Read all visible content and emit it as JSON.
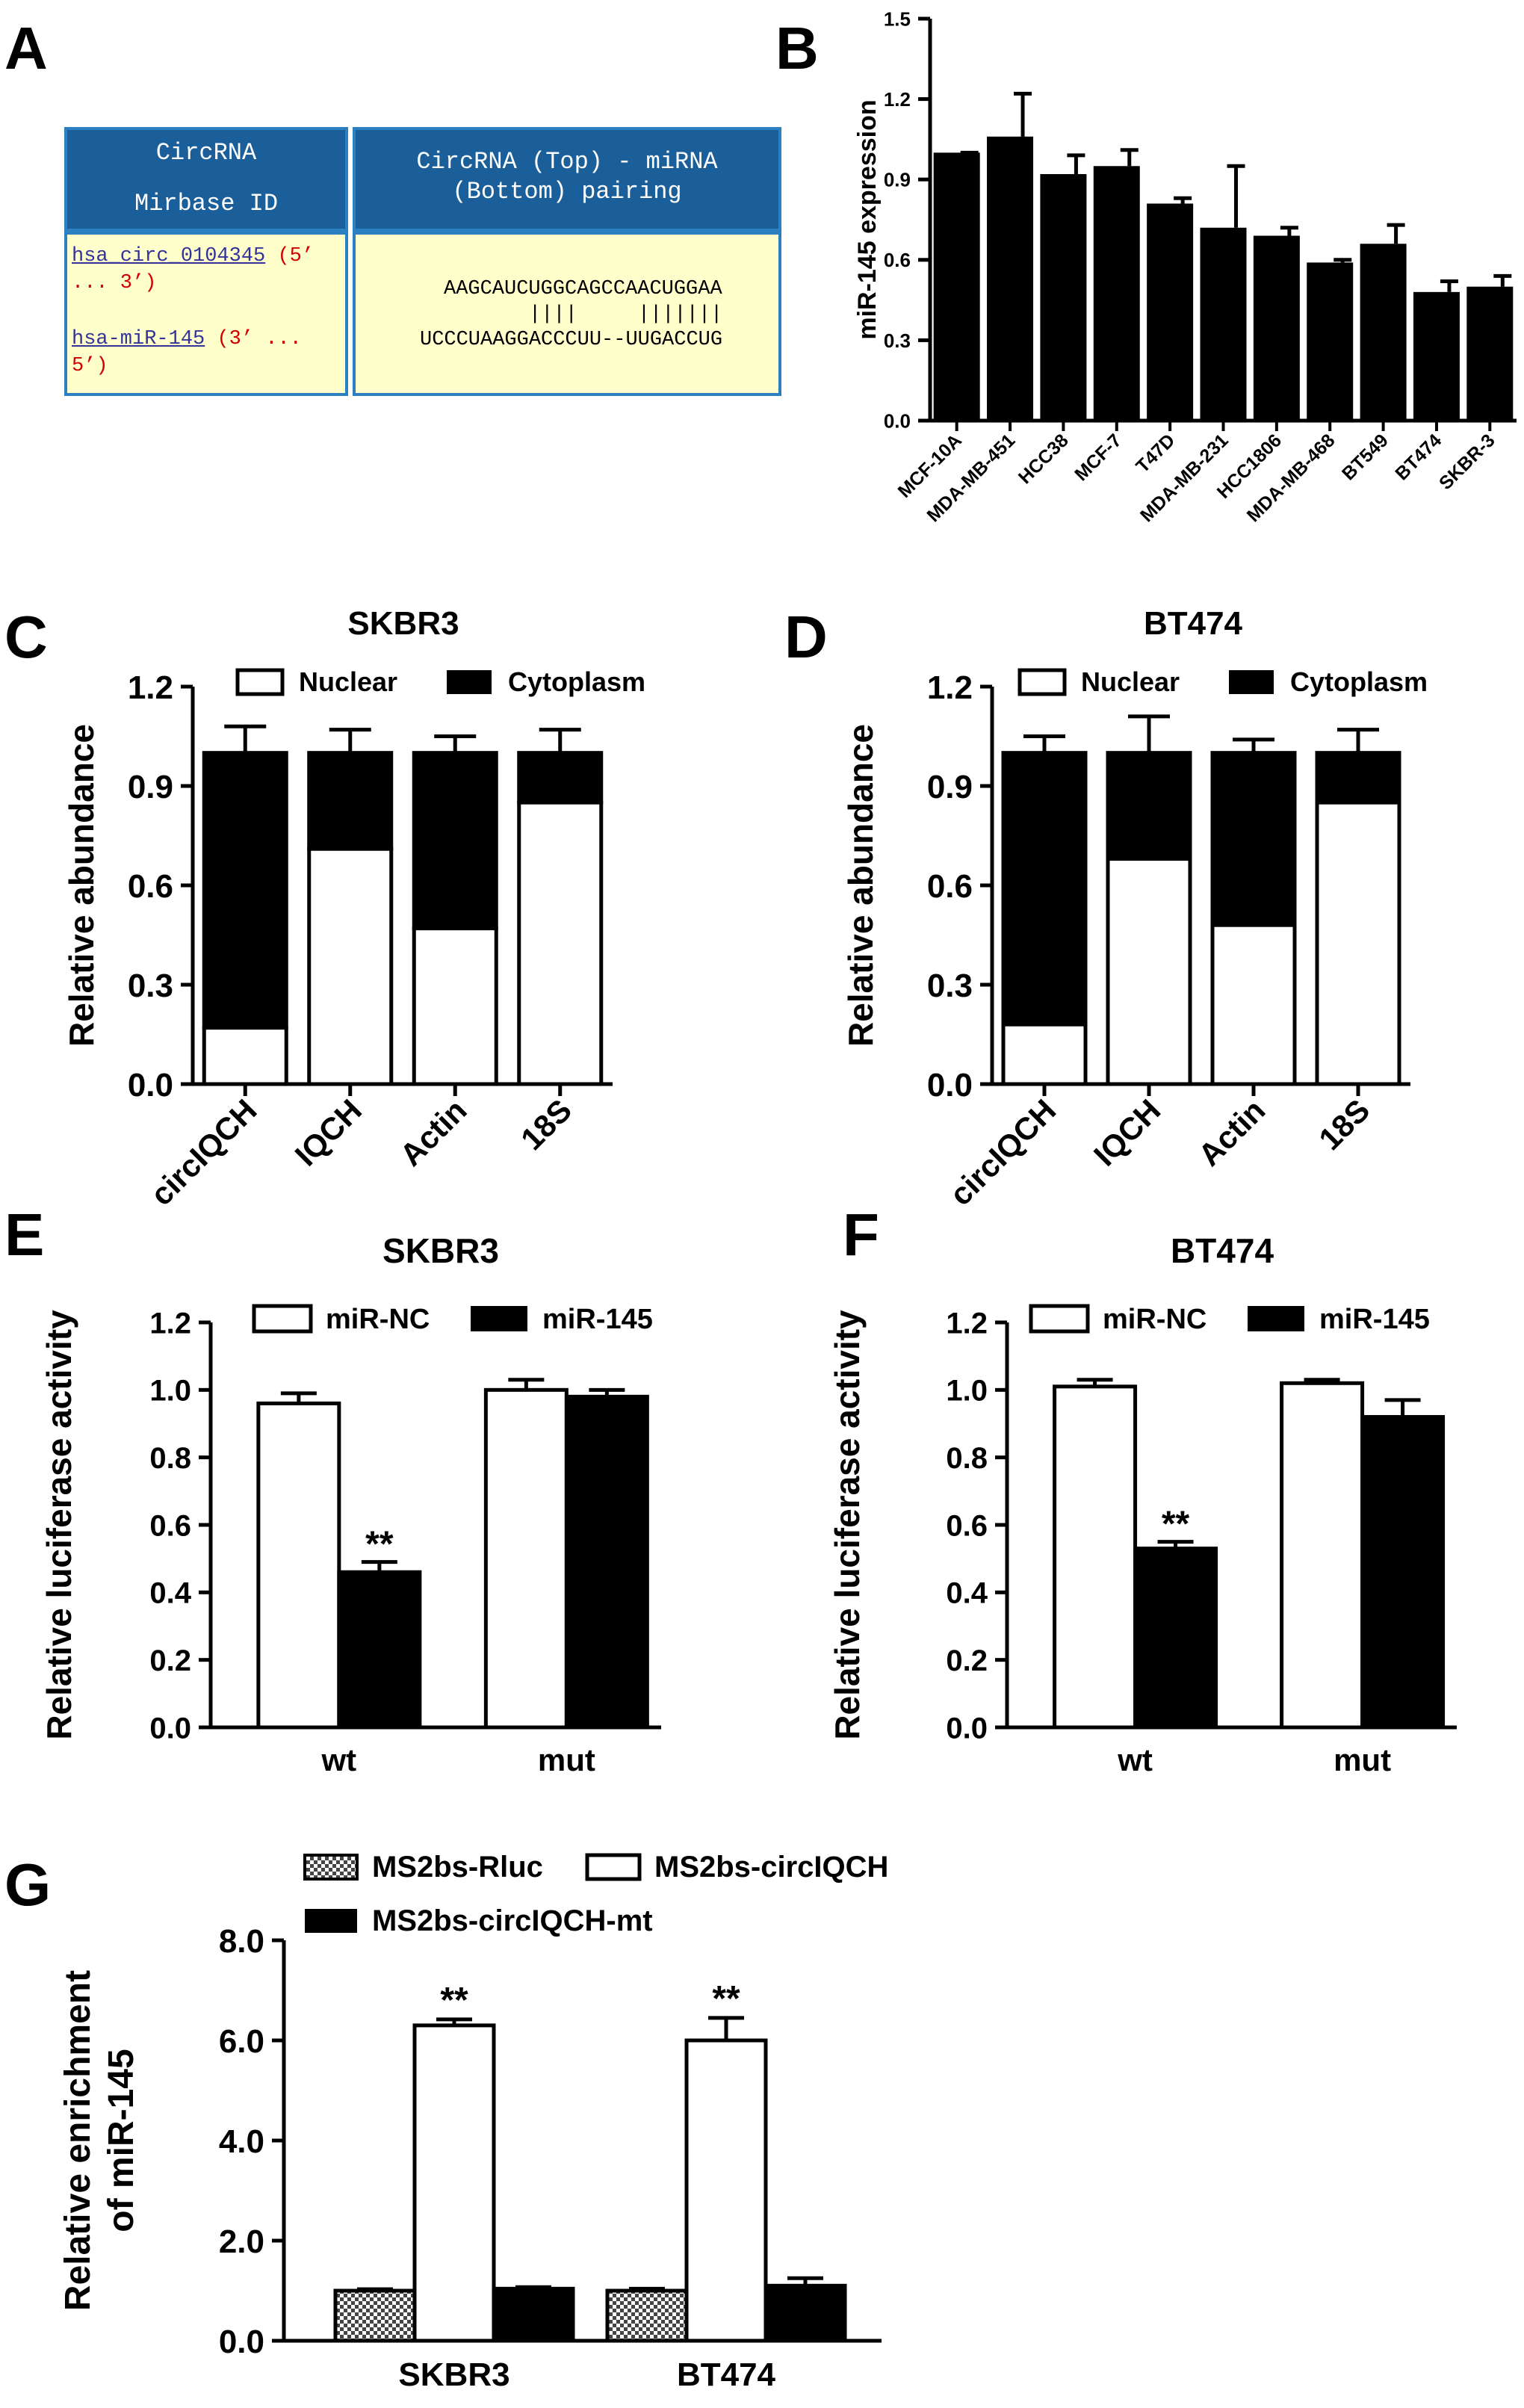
{
  "panel_letters": [
    "A",
    "B",
    "C",
    "D",
    "E",
    "F",
    "G"
  ],
  "blast_table": {
    "header_left_line1": "CircRNA",
    "header_left_line2": "Mirbase ID",
    "header_right_line1": "CircRNA (Top) - miRNA",
    "header_right_line2": "(Bottom) pairing",
    "circ_name": "hsa_circ_0104345",
    "circ_dir_a": "(5’",
    "circ_dir_b": "... 3’)",
    "mir_name": "hsa-miR-145",
    "mir_dir_a": "(3’ ...",
    "mir_dir_b": "5’)",
    "top_seq": "AAGCAUCUGGCAGCCAACUGGAA",
    "pair_seq": "||||     |||||||",
    "bottom_seq": "UCCCUAAGGACCCUU--UUGACCUG"
  },
  "colors": {
    "bar_black": "#000000",
    "bar_white": "#ffffff",
    "header_blue": "#1a5e9a",
    "cell_yellow": "#ffffcc",
    "link_purple": "#333399",
    "red": "#d00000"
  },
  "chart_data": [
    {
      "id": "B",
      "type": "bar",
      "title": "",
      "ylabel": "miR-145 expression",
      "ylim": [
        0,
        1.5
      ],
      "yticks": [
        "0.0",
        "0.3",
        "0.6",
        "0.9",
        "1.2",
        "1.5"
      ],
      "categories": [
        "MCF-10A",
        "MDA-MB-451",
        "HCC38",
        "MCF-7",
        "T47D",
        "MDA-MB-231",
        "HCC1806",
        "MDA-MB-468",
        "BT549",
        "BT474",
        "SKBR-3"
      ],
      "values": [
        1.0,
        1.06,
        0.92,
        0.95,
        0.81,
        0.72,
        0.69,
        0.59,
        0.66,
        0.48,
        0.5
      ],
      "errors": [
        0.0,
        0.16,
        0.07,
        0.06,
        0.02,
        0.23,
        0.03,
        0.01,
        0.07,
        0.04,
        0.04
      ]
    },
    {
      "id": "C",
      "type": "bar",
      "title": "SKBR3",
      "ylabel": "Relative abundance",
      "ylim": [
        0,
        1.2
      ],
      "yticks": [
        "0.0",
        "0.3",
        "0.6",
        "0.9",
        "1.2"
      ],
      "legend": [
        "Nuclear",
        "Cytoplasm"
      ],
      "categories": [
        "circIQCH",
        "IQCH",
        "Actin",
        "18S"
      ],
      "series": [
        {
          "name": "Nuclear",
          "values": [
            0.17,
            0.71,
            0.47,
            0.85
          ]
        },
        {
          "name": "Cytoplasm",
          "values": [
            0.83,
            0.29,
            0.53,
            0.15
          ]
        }
      ],
      "errors": [
        0.08,
        0.07,
        0.05,
        0.07
      ]
    },
    {
      "id": "D",
      "type": "bar",
      "title": "BT474",
      "ylabel": "Relative abundance",
      "ylim": [
        0,
        1.2
      ],
      "yticks": [
        "0.0",
        "0.3",
        "0.6",
        "0.9",
        "1.2"
      ],
      "legend": [
        "Nuclear",
        "Cytoplasm"
      ],
      "categories": [
        "circIQCH",
        "IQCH",
        "Actin",
        "18S"
      ],
      "series": [
        {
          "name": "Nuclear",
          "values": [
            0.18,
            0.68,
            0.48,
            0.85
          ]
        },
        {
          "name": "Cytoplasm",
          "values": [
            0.82,
            0.32,
            0.52,
            0.15
          ]
        }
      ],
      "errors": [
        0.05,
        0.11,
        0.04,
        0.07
      ]
    },
    {
      "id": "E",
      "type": "bar",
      "title": "SKBR3",
      "ylabel": "Relative luciferase activity",
      "ylim": [
        0,
        1.2
      ],
      "yticks": [
        "0.0",
        "0.2",
        "0.4",
        "0.6",
        "0.8",
        "1.0",
        "1.2"
      ],
      "legend": [
        "miR-NC",
        "miR-145"
      ],
      "categories": [
        "wt",
        "mut"
      ],
      "series": [
        {
          "name": "miR-NC",
          "values": [
            0.96,
            1.0
          ],
          "errors": [
            0.03,
            0.03
          ]
        },
        {
          "name": "miR-145",
          "values": [
            0.46,
            0.98
          ],
          "errors": [
            0.03,
            0.02
          ]
        }
      ],
      "annotations": [
        "**"
      ]
    },
    {
      "id": "F",
      "type": "bar",
      "title": "BT474",
      "ylabel": "Relative luciferase activity",
      "ylim": [
        0,
        1.2
      ],
      "yticks": [
        "0.0",
        "0.2",
        "0.4",
        "0.6",
        "0.8",
        "1.0",
        "1.2"
      ],
      "legend": [
        "miR-NC",
        "miR-145"
      ],
      "categories": [
        "wt",
        "mut"
      ],
      "series": [
        {
          "name": "miR-NC",
          "values": [
            1.01,
            1.02
          ],
          "errors": [
            0.02,
            0.01
          ]
        },
        {
          "name": "miR-145",
          "values": [
            0.53,
            0.92
          ],
          "errors": [
            0.02,
            0.05
          ]
        }
      ],
      "annotations": [
        "**"
      ]
    },
    {
      "id": "G",
      "type": "bar",
      "title": "",
      "ylabel_line1": "Relative enrichment",
      "ylabel_line2": "of miR-145",
      "ylim": [
        0,
        8.0
      ],
      "yticks": [
        "0.0",
        "2.0",
        "4.0",
        "6.0",
        "8.0"
      ],
      "legend": [
        "MS2bs-Rluc",
        "MS2bs-circIQCH",
        "MS2bs-circIQCH-mt"
      ],
      "categories": [
        "SKBR3",
        "BT474"
      ],
      "series": [
        {
          "name": "MS2bs-Rluc",
          "values": [
            1.0,
            1.0
          ],
          "errors": [
            0.03,
            0.04
          ]
        },
        {
          "name": "MS2bs-circIQCH",
          "values": [
            6.3,
            6.0
          ],
          "errors": [
            0.12,
            0.45
          ]
        },
        {
          "name": "MS2bs-circIQCH-mt",
          "values": [
            1.04,
            1.1
          ],
          "errors": [
            0.03,
            0.15
          ]
        }
      ],
      "annotations": [
        "**",
        "**"
      ]
    }
  ]
}
